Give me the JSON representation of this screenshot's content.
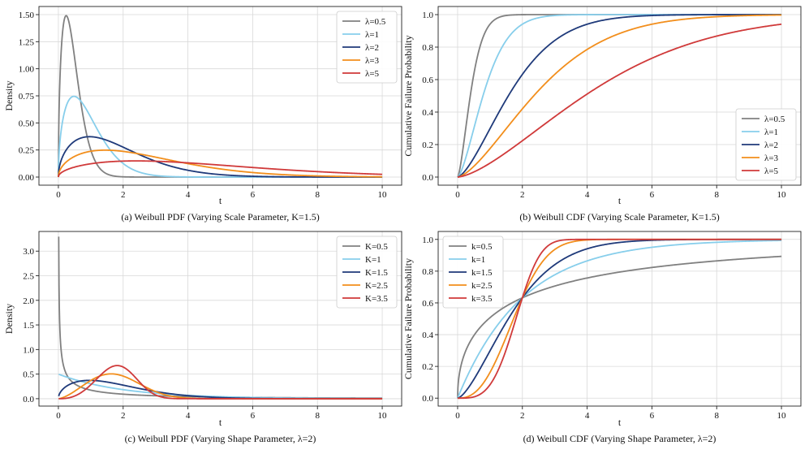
{
  "chart_data": [
    {
      "id": "a",
      "type": "line",
      "caption": "(a) Weibull PDF (Varying Scale Parameter, K=1.5)",
      "xlabel": "t",
      "ylabel": "Density",
      "xlim": [
        -0.6,
        10.6
      ],
      "ylim": [
        -0.075,
        1.575
      ],
      "xticks": [
        0,
        2,
        4,
        6,
        8,
        10
      ],
      "xtick_labels": [
        "0",
        "2",
        "4",
        "6",
        "8",
        "10"
      ],
      "yticks": [
        0,
        0.25,
        0.5,
        0.75,
        1.0,
        1.25,
        1.5
      ],
      "ytick_labels": [
        "0.00",
        "0.25",
        "0.50",
        "0.75",
        "1.00",
        "1.25",
        "1.50"
      ],
      "grid": true,
      "legend": "top-right",
      "function": "pdf",
      "series": [
        {
          "name": "λ=0.5",
          "k": 1.5,
          "lambda": 0.5,
          "color": "#808080"
        },
        {
          "name": "λ=1",
          "k": 1.5,
          "lambda": 1,
          "color": "#87CEEB"
        },
        {
          "name": "λ=2",
          "k": 1.5,
          "lambda": 2,
          "color": "#1F3A7A"
        },
        {
          "name": "λ=3",
          "k": 1.5,
          "lambda": 3,
          "color": "#F28E1C"
        },
        {
          "name": "λ=5",
          "k": 1.5,
          "lambda": 5,
          "color": "#D03A3A"
        }
      ]
    },
    {
      "id": "b",
      "type": "line",
      "caption": "(b) Weibull CDF (Varying Scale Parameter, K=1.5)",
      "xlabel": "t",
      "ylabel": "Cumulative Failure Probability",
      "xlim": [
        -0.6,
        10.6
      ],
      "ylim": [
        -0.05,
        1.05
      ],
      "xticks": [
        0,
        2,
        4,
        6,
        8,
        10
      ],
      "xtick_labels": [
        "0",
        "2",
        "4",
        "6",
        "8",
        "10"
      ],
      "yticks": [
        0,
        0.2,
        0.4,
        0.6,
        0.8,
        1.0
      ],
      "ytick_labels": [
        "0.0",
        "0.2",
        "0.4",
        "0.6",
        "0.8",
        "1.0"
      ],
      "grid": true,
      "legend": "bottom-right",
      "function": "cdf",
      "series": [
        {
          "name": "λ=0.5",
          "k": 1.5,
          "lambda": 0.5,
          "color": "#808080"
        },
        {
          "name": "λ=1",
          "k": 1.5,
          "lambda": 1,
          "color": "#87CEEB"
        },
        {
          "name": "λ=2",
          "k": 1.5,
          "lambda": 2,
          "color": "#1F3A7A"
        },
        {
          "name": "λ=3",
          "k": 1.5,
          "lambda": 3,
          "color": "#F28E1C"
        },
        {
          "name": "λ=5",
          "k": 1.5,
          "lambda": 5,
          "color": "#D03A3A"
        }
      ]
    },
    {
      "id": "c",
      "type": "line",
      "caption": "(c) Weibull PDF (Varying Shape Parameter, λ=2)",
      "xlabel": "t",
      "ylabel": "Density",
      "xlim": [
        -0.6,
        10.6
      ],
      "ylim": [
        -0.15,
        3.4
      ],
      "xticks": [
        0,
        2,
        4,
        6,
        8,
        10
      ],
      "xtick_labels": [
        "0",
        "2",
        "4",
        "6",
        "8",
        "10"
      ],
      "yticks": [
        0,
        0.5,
        1.0,
        1.5,
        2.0,
        2.5,
        3.0
      ],
      "ytick_labels": [
        "0.0",
        "0.5",
        "1.0",
        "1.5",
        "2.0",
        "2.5",
        "3.0"
      ],
      "grid": true,
      "legend": "top-right",
      "function": "pdf",
      "x_start": 0.01,
      "series": [
        {
          "name": "K=0.5",
          "k": 0.5,
          "lambda": 2,
          "color": "#808080"
        },
        {
          "name": "K=1",
          "k": 1,
          "lambda": 2,
          "color": "#87CEEB"
        },
        {
          "name": "K=1.5",
          "k": 1.5,
          "lambda": 2,
          "color": "#1F3A7A"
        },
        {
          "name": "K=2.5",
          "k": 2.5,
          "lambda": 2,
          "color": "#F28E1C"
        },
        {
          "name": "K=3.5",
          "k": 3.5,
          "lambda": 2,
          "color": "#D03A3A"
        }
      ]
    },
    {
      "id": "d",
      "type": "line",
      "caption": "(d) Weibull CDF (Varying Shape Parameter, λ=2)",
      "xlabel": "t",
      "ylabel": "Cumulative Failure Probability",
      "xlim": [
        -0.6,
        10.6
      ],
      "ylim": [
        -0.05,
        1.05
      ],
      "xticks": [
        0,
        2,
        4,
        6,
        8,
        10
      ],
      "xtick_labels": [
        "0",
        "2",
        "4",
        "6",
        "8",
        "10"
      ],
      "yticks": [
        0,
        0.2,
        0.4,
        0.6,
        0.8,
        1.0
      ],
      "ytick_labels": [
        "0.0",
        "0.2",
        "0.4",
        "0.6",
        "0.8",
        "1.0"
      ],
      "grid": true,
      "legend": "top-left",
      "function": "cdf",
      "series": [
        {
          "name": "k=0.5",
          "k": 0.5,
          "lambda": 2,
          "color": "#808080"
        },
        {
          "name": "k=1",
          "k": 1,
          "lambda": 2,
          "color": "#87CEEB"
        },
        {
          "name": "k=1.5",
          "k": 1.5,
          "lambda": 2,
          "color": "#1F3A7A"
        },
        {
          "name": "k=2.5",
          "k": 2.5,
          "lambda": 2,
          "color": "#F28E1C"
        },
        {
          "name": "k=3.5",
          "k": 3.5,
          "lambda": 2,
          "color": "#D03A3A"
        }
      ]
    }
  ]
}
